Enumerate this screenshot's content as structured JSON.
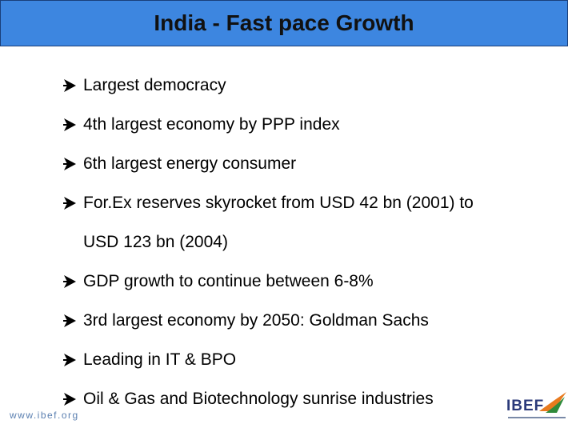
{
  "header": {
    "title": "India - Fast pace Growth"
  },
  "bullets": [
    {
      "lines": [
        "Largest democracy"
      ]
    },
    {
      "lines": [
        "4th largest economy by PPP index"
      ]
    },
    {
      "lines": [
        "6th largest energy consumer"
      ]
    },
    {
      "lines": [
        "For.Ex reserves skyrocket from USD 42 bn (2001) to",
        "USD 123 bn (2004)"
      ]
    },
    {
      "lines": [
        "GDP growth to continue between 6-8%"
      ]
    },
    {
      "lines": [
        "3rd largest economy by 2050: Goldman Sachs"
      ]
    },
    {
      "lines": [
        "Leading in IT & BPO"
      ]
    },
    {
      "lines": [
        "Oil & Gas and Biotechnology sunrise industries"
      ]
    }
  ],
  "footer": {
    "url": "www.ibef.org",
    "logo": "IBEF"
  }
}
